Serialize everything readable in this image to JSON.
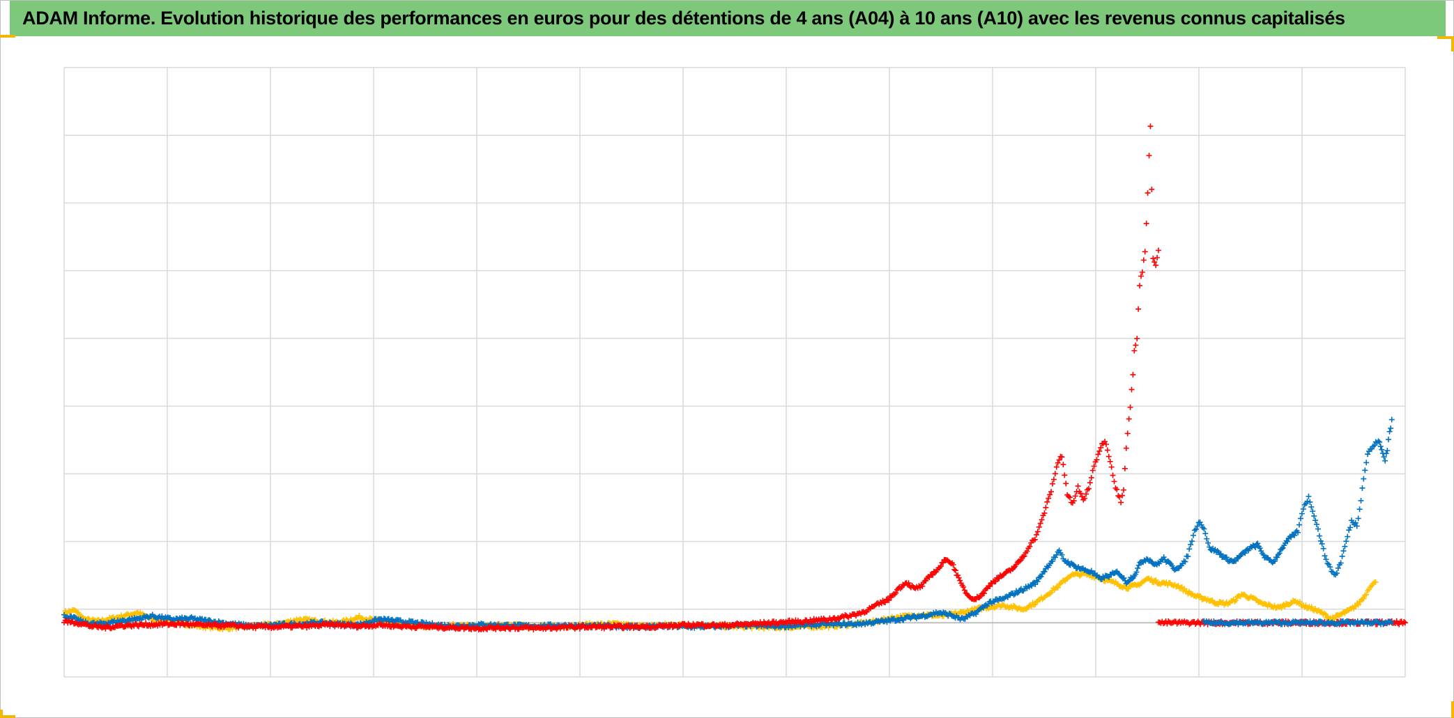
{
  "title": "ADAM Informe. Evolution historique des performances en euros pour des détentions de 4 ans (A04) à 10 ans (A10) avec les revenus connus capitalisés",
  "colors": {
    "header_bg": "#7dc87a",
    "corner": "#f2b705",
    "grid": "#d9d9d9",
    "baseline": "#bfbfbf"
  },
  "chart_data": {
    "type": "scatter",
    "marker": "plus",
    "grid": true,
    "legend": "none",
    "x_gridlines": 13,
    "y_gridlines": 9,
    "xlim": [
      0,
      1000
    ],
    "ylim": [
      -0.8,
      8.2
    ],
    "series": [
      {
        "color": "#ffc000",
        "points": [
          [
            0,
            0.15
          ],
          [
            8,
            0.18
          ],
          [
            15,
            0.05
          ],
          [
            25,
            0.02
          ],
          [
            40,
            0.08
          ],
          [
            55,
            0.15
          ],
          [
            65,
            0.05
          ],
          [
            80,
            0.02
          ],
          [
            100,
            -0.05
          ],
          [
            120,
            -0.08
          ],
          [
            140,
            -0.05
          ],
          [
            160,
            -0.02
          ],
          [
            175,
            0.05
          ],
          [
            190,
            0.02
          ],
          [
            205,
            0.0
          ],
          [
            220,
            0.08
          ],
          [
            235,
            0.02
          ],
          [
            250,
            -0.03
          ],
          [
            270,
            -0.06
          ],
          [
            290,
            -0.04
          ],
          [
            310,
            -0.05
          ],
          [
            330,
            -0.04
          ],
          [
            350,
            -0.05
          ],
          [
            370,
            -0.06
          ],
          [
            390,
            -0.03
          ],
          [
            410,
            -0.02
          ],
          [
            430,
            -0.05
          ],
          [
            450,
            -0.03
          ],
          [
            470,
            -0.04
          ],
          [
            490,
            -0.05
          ],
          [
            510,
            -0.06
          ],
          [
            530,
            -0.07
          ],
          [
            550,
            -0.06
          ],
          [
            570,
            -0.05
          ],
          [
            590,
            -0.02
          ],
          [
            605,
            0.02
          ],
          [
            620,
            0.08
          ],
          [
            640,
            0.12
          ],
          [
            655,
            0.1
          ],
          [
            670,
            0.15
          ],
          [
            685,
            0.22
          ],
          [
            700,
            0.26
          ],
          [
            715,
            0.2
          ],
          [
            725,
            0.3
          ],
          [
            735,
            0.45
          ],
          [
            742,
            0.55
          ],
          [
            750,
            0.7
          ],
          [
            760,
            0.72
          ],
          [
            770,
            0.68
          ],
          [
            778,
            0.62
          ],
          [
            785,
            0.58
          ],
          [
            792,
            0.52
          ],
          [
            800,
            0.55
          ],
          [
            808,
            0.65
          ],
          [
            815,
            0.6
          ],
          [
            822,
            0.58
          ],
          [
            830,
            0.55
          ],
          [
            838,
            0.45
          ],
          [
            845,
            0.38
          ],
          [
            852,
            0.35
          ],
          [
            858,
            0.3
          ],
          [
            866,
            0.28
          ],
          [
            872,
            0.32
          ],
          [
            878,
            0.42
          ],
          [
            886,
            0.36
          ],
          [
            893,
            0.28
          ],
          [
            900,
            0.25
          ],
          [
            906,
            0.22
          ],
          [
            912,
            0.28
          ],
          [
            919,
            0.32
          ],
          [
            925,
            0.24
          ],
          [
            932,
            0.2
          ],
          [
            938,
            0.14
          ],
          [
            945,
            0.06
          ],
          [
            950,
            0.1
          ],
          [
            955,
            0.15
          ],
          [
            960,
            0.2
          ],
          [
            965,
            0.28
          ],
          [
            970,
            0.4
          ],
          [
            974,
            0.55
          ],
          [
            978,
            0.6
          ]
        ]
      },
      {
        "color": "#0070c0",
        "points": [
          [
            0,
            0.1
          ],
          [
            8,
            0.06
          ],
          [
            15,
            0.0
          ],
          [
            25,
            -0.02
          ],
          [
            40,
            0.02
          ],
          [
            55,
            0.06
          ],
          [
            65,
            0.1
          ],
          [
            80,
            0.05
          ],
          [
            95,
            0.06
          ],
          [
            110,
            0.02
          ],
          [
            125,
            -0.02
          ],
          [
            140,
            -0.05
          ],
          [
            160,
            -0.03
          ],
          [
            175,
            -0.02
          ],
          [
            190,
            0.0
          ],
          [
            205,
            -0.02
          ],
          [
            220,
            -0.03
          ],
          [
            235,
            0.05
          ],
          [
            250,
            0.02
          ],
          [
            270,
            -0.02
          ],
          [
            290,
            -0.05
          ],
          [
            310,
            -0.03
          ],
          [
            330,
            -0.04
          ],
          [
            350,
            -0.05
          ],
          [
            370,
            -0.04
          ],
          [
            390,
            -0.05
          ],
          [
            410,
            -0.05
          ],
          [
            430,
            -0.06
          ],
          [
            450,
            -0.05
          ],
          [
            470,
            -0.06
          ],
          [
            490,
            -0.05
          ],
          [
            510,
            -0.04
          ],
          [
            530,
            -0.05
          ],
          [
            550,
            -0.04
          ],
          [
            570,
            -0.02
          ],
          [
            590,
            -0.02
          ],
          [
            610,
            0.02
          ],
          [
            625,
            0.06
          ],
          [
            640,
            0.1
          ],
          [
            652,
            0.15
          ],
          [
            660,
            0.12
          ],
          [
            670,
            0.05
          ],
          [
            680,
            0.15
          ],
          [
            690,
            0.3
          ],
          [
            700,
            0.35
          ],
          [
            710,
            0.45
          ],
          [
            718,
            0.52
          ],
          [
            725,
            0.6
          ],
          [
            732,
            0.8
          ],
          [
            738,
            0.95
          ],
          [
            742,
            1.05
          ],
          [
            746,
            0.92
          ],
          [
            752,
            0.85
          ],
          [
            758,
            0.8
          ],
          [
            766,
            0.75
          ],
          [
            772,
            0.65
          ],
          [
            780,
            0.7
          ],
          [
            786,
            0.75
          ],
          [
            792,
            0.6
          ],
          [
            798,
            0.7
          ],
          [
            803,
            0.9
          ],
          [
            808,
            0.95
          ],
          [
            814,
            0.85
          ],
          [
            820,
            0.95
          ],
          [
            828,
            0.8
          ],
          [
            834,
            0.85
          ],
          [
            838,
            1.0
          ],
          [
            842,
            1.3
          ],
          [
            846,
            1.5
          ],
          [
            850,
            1.4
          ],
          [
            854,
            1.1
          ],
          [
            860,
            1.05
          ],
          [
            866,
            0.95
          ],
          [
            872,
            0.9
          ],
          [
            878,
            1.0
          ],
          [
            884,
            1.1
          ],
          [
            890,
            1.15
          ],
          [
            896,
            0.95
          ],
          [
            902,
            0.9
          ],
          [
            908,
            1.1
          ],
          [
            914,
            1.25
          ],
          [
            920,
            1.35
          ],
          [
            924,
            1.7
          ],
          [
            928,
            1.85
          ],
          [
            932,
            1.6
          ],
          [
            936,
            1.3
          ],
          [
            940,
            1.0
          ],
          [
            944,
            0.8
          ],
          [
            948,
            0.7
          ],
          [
            952,
            0.9
          ],
          [
            956,
            1.2
          ],
          [
            960,
            1.5
          ],
          [
            964,
            1.45
          ],
          [
            968,
            2.0
          ],
          [
            972,
            2.5
          ],
          [
            976,
            2.6
          ],
          [
            980,
            2.7
          ],
          [
            985,
            2.4
          ],
          [
            990,
            3.0
          ]
        ]
      },
      {
        "color": "#ff0000",
        "points": [
          [
            0,
            0.02
          ],
          [
            10,
            0.0
          ],
          [
            20,
            -0.05
          ],
          [
            30,
            -0.07
          ],
          [
            45,
            -0.04
          ],
          [
            60,
            -0.03
          ],
          [
            75,
            -0.02
          ],
          [
            90,
            -0.02
          ],
          [
            105,
            -0.04
          ],
          [
            120,
            -0.04
          ],
          [
            140,
            -0.06
          ],
          [
            160,
            -0.06
          ],
          [
            180,
            -0.05
          ],
          [
            200,
            -0.03
          ],
          [
            220,
            -0.05
          ],
          [
            235,
            -0.03
          ],
          [
            250,
            -0.05
          ],
          [
            270,
            -0.06
          ],
          [
            290,
            -0.07
          ],
          [
            310,
            -0.08
          ],
          [
            330,
            -0.07
          ],
          [
            350,
            -0.08
          ],
          [
            370,
            -0.07
          ],
          [
            390,
            -0.06
          ],
          [
            410,
            -0.06
          ],
          [
            430,
            -0.06
          ],
          [
            450,
            -0.05
          ],
          [
            470,
            -0.03
          ],
          [
            490,
            -0.04
          ],
          [
            510,
            -0.02
          ],
          [
            530,
            0.0
          ],
          [
            550,
            0.02
          ],
          [
            570,
            0.05
          ],
          [
            585,
            0.1
          ],
          [
            595,
            0.15
          ],
          [
            605,
            0.25
          ],
          [
            615,
            0.35
          ],
          [
            622,
            0.5
          ],
          [
            628,
            0.6
          ],
          [
            634,
            0.5
          ],
          [
            640,
            0.55
          ],
          [
            646,
            0.7
          ],
          [
            652,
            0.8
          ],
          [
            658,
            0.95
          ],
          [
            663,
            0.85
          ],
          [
            668,
            0.6
          ],
          [
            674,
            0.4
          ],
          [
            680,
            0.35
          ],
          [
            686,
            0.45
          ],
          [
            692,
            0.6
          ],
          [
            698,
            0.68
          ],
          [
            704,
            0.75
          ],
          [
            710,
            0.85
          ],
          [
            716,
            1.0
          ],
          [
            720,
            1.15
          ],
          [
            724,
            1.25
          ],
          [
            728,
            1.45
          ],
          [
            732,
            1.7
          ],
          [
            736,
            1.95
          ],
          [
            740,
            2.3
          ],
          [
            744,
            2.5
          ],
          [
            748,
            1.9
          ],
          [
            752,
            1.75
          ],
          [
            756,
            2.0
          ],
          [
            760,
            1.8
          ],
          [
            764,
            2.0
          ],
          [
            768,
            2.3
          ],
          [
            772,
            2.55
          ],
          [
            776,
            2.7
          ],
          [
            780,
            2.4
          ],
          [
            784,
            2.0
          ],
          [
            788,
            1.8
          ],
          [
            790,
            2.0
          ],
          [
            792,
            2.6
          ],
          [
            794,
            3.0
          ],
          [
            796,
            3.4
          ],
          [
            798,
            4.0
          ],
          [
            800,
            4.2
          ],
          [
            802,
            5.0
          ],
          [
            804,
            5.2
          ],
          [
            806,
            5.5
          ],
          [
            808,
            6.4
          ],
          [
            810,
            7.3
          ],
          [
            812,
            5.4
          ],
          [
            814,
            5.3
          ],
          [
            816,
            5.5
          ]
        ]
      },
      {
        "color": "#ff0000",
        "points": [
          [
            816,
            0.0
          ],
          [
            840,
            0.0
          ],
          [
            860,
            0.0
          ],
          [
            880,
            0.0
          ],
          [
            900,
            0.0
          ],
          [
            920,
            0.0
          ],
          [
            940,
            0.0
          ],
          [
            960,
            0.0
          ],
          [
            980,
            0.0
          ],
          [
            1000,
            0.0
          ]
        ]
      },
      {
        "color": "#0070c0",
        "points": [
          [
            850,
            0.0
          ],
          [
            870,
            0.0
          ],
          [
            890,
            0.0
          ],
          [
            910,
            0.0
          ],
          [
            930,
            0.0
          ],
          [
            950,
            0.0
          ],
          [
            970,
            0.0
          ],
          [
            990,
            0.0
          ]
        ]
      }
    ]
  }
}
